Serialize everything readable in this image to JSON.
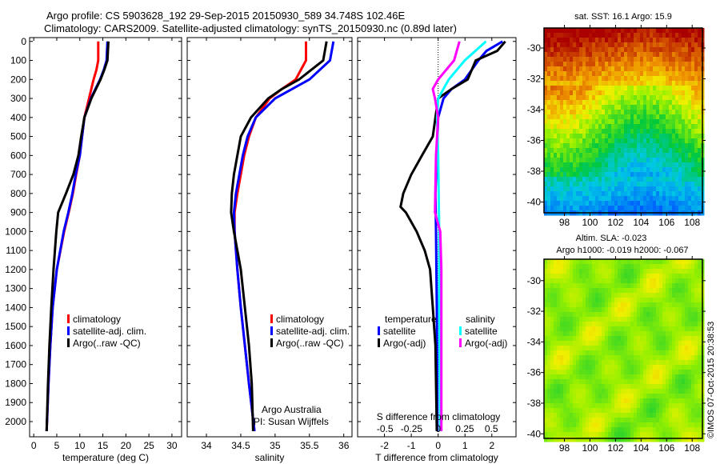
{
  "title_line1": "Argo profile: CS 5903628_192 29-Sep-2015 20150930_589 34.748S 102.46E",
  "title_line2": "Climatology: CARS2009. Satellite-adjusted climatology: synTS_20150930.nc (0.89d later)",
  "side_label": "©IMOS 07-Oct-2015 20:38:53",
  "colors": {
    "climatology": "#ff0000",
    "satellite": "#0000ff",
    "argo": "#000000",
    "sal_satellite": "#00ffff",
    "sal_argo": "#ff00ff"
  },
  "chart_data": [
    {
      "type": "line",
      "id": "temperature",
      "xlabel": "temperature (deg C)",
      "ylabel": "",
      "xlim": [
        -0.9,
        32.1
      ],
      "ylim": [
        2080,
        -20
      ],
      "xticks": [
        "0",
        "5",
        "10",
        "15",
        "20",
        "25",
        "30"
      ],
      "xtick_values": [
        0,
        5,
        10,
        15,
        20,
        25,
        30
      ],
      "yticks": [
        "0",
        "100",
        "200",
        "300",
        "400",
        "500",
        "600",
        "700",
        "800",
        "900",
        "1000",
        "1100",
        "1200",
        "1300",
        "1400",
        "1500",
        "1600",
        "1700",
        "1800",
        "1900",
        "2000"
      ],
      "legend": [
        "climatology",
        "satellite-adj. clim.",
        "Argo(..raw -QC)"
      ],
      "legend_position": "lower-middle",
      "series": [
        {
          "name": "climatology",
          "depth": [
            0,
            100,
            150,
            200,
            300,
            400,
            500,
            600,
            700,
            800,
            900,
            1000,
            1200,
            1400,
            1600,
            1800,
            2050
          ],
          "values": [
            14,
            14,
            13.6,
            13,
            12,
            11,
            10.5,
            10,
            9.2,
            8.5,
            7.6,
            6.6,
            5,
            4.1,
            3.6,
            3.2,
            2.8
          ]
        },
        {
          "name": "satellite-adj. clim.",
          "depth": [
            0,
            100,
            150,
            200,
            300,
            400,
            500,
            600,
            700,
            800,
            900,
            1000,
            1200,
            1400,
            1600,
            1800,
            2050
          ],
          "values": [
            16,
            15.8,
            15.2,
            14.4,
            12.4,
            11,
            10.5,
            10,
            9.1,
            8.4,
            7.5,
            6.5,
            5,
            4.1,
            3.6,
            3.2,
            2.8
          ]
        },
        {
          "name": "Argo(..raw -QC)",
          "depth": [
            0,
            100,
            150,
            200,
            300,
            400,
            500,
            600,
            700,
            800,
            900,
            1000,
            1200,
            1400,
            1600,
            1800,
            2050
          ],
          "values": [
            16.2,
            16,
            15.3,
            14.5,
            12.5,
            11,
            10.3,
            9.7,
            8.6,
            7,
            5.3,
            4.9,
            4.3,
            3.8,
            3.4,
            3.1,
            2.8
          ]
        }
      ]
    },
    {
      "type": "line",
      "id": "salinity",
      "xlabel": "salinity",
      "xlim": [
        33.72,
        36.12
      ],
      "ylim": [
        2080,
        -20
      ],
      "xticks": [
        "34",
        "34.5",
        "35",
        "35.5",
        "36"
      ],
      "xtick_values": [
        34,
        34.5,
        35,
        35.5,
        36
      ],
      "legend": [
        "climatology",
        "satellite-adj. clim.",
        "Argo(..raw -QC)"
      ],
      "annotation": [
        "Argo Australia",
        "PI: Susan Wijffels"
      ],
      "series": [
        {
          "name": "climatology",
          "depth": [
            0,
            100,
            200,
            250,
            300,
            400,
            500,
            600,
            700,
            800,
            900,
            1000,
            1200,
            1400,
            1600,
            1800,
            2050
          ],
          "values": [
            35.45,
            35.45,
            35.3,
            35.1,
            34.92,
            34.72,
            34.62,
            34.55,
            34.5,
            34.45,
            34.41,
            34.41,
            34.45,
            34.5,
            34.56,
            34.62,
            34.7
          ]
        },
        {
          "name": "satellite-adj. clim.",
          "depth": [
            0,
            100,
            200,
            250,
            300,
            400,
            500,
            600,
            700,
            800,
            900,
            1000,
            1200,
            1400,
            1600,
            1800,
            2050
          ],
          "values": [
            35.85,
            35.8,
            35.5,
            35.25,
            35.0,
            34.72,
            34.6,
            34.53,
            34.48,
            34.43,
            34.4,
            34.41,
            34.45,
            34.5,
            34.56,
            34.62,
            34.7
          ]
        },
        {
          "name": "Argo(..raw -QC)",
          "depth": [
            0,
            100,
            200,
            250,
            300,
            400,
            500,
            600,
            700,
            800,
            900,
            1000,
            1200,
            1400,
            1600,
            1800,
            2050
          ],
          "values": [
            35.75,
            35.7,
            35.35,
            35.1,
            34.9,
            34.65,
            34.5,
            34.45,
            34.4,
            34.37,
            34.36,
            34.4,
            34.5,
            34.56,
            34.62,
            34.66,
            34.68
          ]
        }
      ]
    },
    {
      "type": "line",
      "id": "difference",
      "xlabel": "T difference from climatology",
      "x2label": "S difference from climatology",
      "xlim": [
        -3.0,
        2.9
      ],
      "ylim": [
        2080,
        -20
      ],
      "xticks": [
        "-2",
        "-1",
        "0",
        "1",
        "2"
      ],
      "xtick_values": [
        -2,
        -1,
        0,
        1,
        2
      ],
      "x2ticks": [
        "-0.5",
        "-0.25",
        "0",
        "0.25",
        "0.5"
      ],
      "x2tick_values": [
        -0.5,
        -0.25,
        0,
        0.25,
        0.5
      ],
      "legend_temperature": {
        "title": "temperature",
        "items": [
          "satellite",
          "Argo(-adj)"
        ]
      },
      "legend_salinity": {
        "title": "salinity",
        "items": [
          "satellite",
          "Argo(-adj)"
        ]
      },
      "series": [
        {
          "name": "T satellite",
          "axis": "T",
          "depth": [
            0,
            50,
            100,
            200,
            250,
            300,
            400,
            600,
            800,
            1000,
            1400,
            2050
          ],
          "values": [
            2.4,
            1.8,
            1.5,
            1.0,
            0.5,
            0.2,
            0,
            -0.05,
            -0.1,
            -0.08,
            -0.05,
            -0.03
          ]
        },
        {
          "name": "T Argo(-adj)",
          "axis": "T",
          "depth": [
            0,
            50,
            100,
            200,
            250,
            300,
            400,
            500,
            600,
            700,
            800,
            870,
            900,
            1000,
            1100,
            1200,
            1400,
            1600,
            2050
          ],
          "values": [
            2.5,
            2.2,
            1.4,
            1.1,
            0.5,
            0,
            -0.1,
            -0.2,
            -0.6,
            -1.0,
            -1.3,
            -1.4,
            -1.2,
            -0.8,
            -0.5,
            -0.3,
            -0.2,
            -0.1,
            -0.05
          ]
        },
        {
          "name": "S satellite",
          "axis": "S",
          "depth": [
            0,
            50,
            100,
            200,
            300,
            400,
            600,
            1000,
            1400,
            2050
          ],
          "values": [
            0.45,
            0.35,
            0.25,
            0.1,
            0,
            -0.01,
            0,
            0.01,
            0.01,
            0.02
          ]
        },
        {
          "name": "S Argo(-adj)",
          "axis": "S",
          "depth": [
            0,
            100,
            200,
            250,
            300,
            400,
            600,
            900,
            1000,
            1200,
            1600,
            2050
          ],
          "values": [
            0.2,
            0.15,
            0.0,
            -0.05,
            -0.03,
            0,
            -0.02,
            -0.03,
            0.02,
            0.03,
            0.03,
            0.03
          ]
        }
      ]
    },
    {
      "type": "heatmap",
      "id": "sst_map",
      "title": "sat. SST: 16.1 Argo: 15.9",
      "xticks": [
        "98",
        "100",
        "102",
        "104",
        "106",
        "108"
      ],
      "xtick_values": [
        98,
        100,
        102,
        104,
        106,
        108
      ],
      "yticks": [
        "-30",
        "-32",
        "-34",
        "-36",
        "-38",
        "-40"
      ],
      "ytick_values": [
        -30,
        -32,
        -34,
        -36,
        -38,
        -40
      ],
      "xlim": [
        96.4,
        108.8
      ],
      "ylim": [
        -40.7,
        -28.7
      ]
    },
    {
      "type": "heatmap",
      "id": "sla_map",
      "title": "Altim. SLA: -0.023",
      "subtitle": "Argo h1000: -0.019 h2000: -0.067",
      "xticks": [
        "98",
        "100",
        "102",
        "104",
        "106",
        "108"
      ],
      "xtick_values": [
        98,
        100,
        102,
        104,
        106,
        108
      ],
      "yticks": [
        "-30",
        "-32",
        "-34",
        "-36",
        "-38",
        "-40"
      ],
      "ytick_values": [
        -30,
        -32,
        -34,
        -36,
        -38,
        -40
      ],
      "xlim": [
        96.4,
        108.8
      ],
      "ylim": [
        -40.3,
        -28.6
      ]
    }
  ]
}
